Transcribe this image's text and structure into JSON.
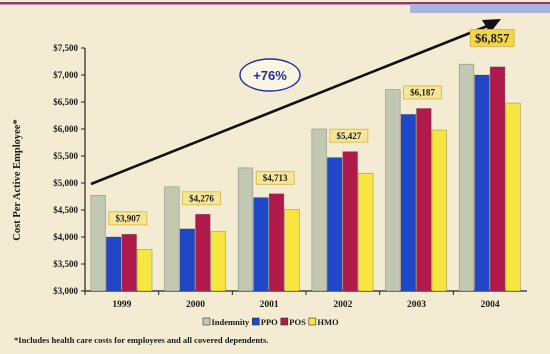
{
  "chart_data": {
    "type": "bar",
    "categories": [
      "1999",
      "2000",
      "2001",
      "2002",
      "2003",
      "2004"
    ],
    "series": [
      {
        "name": "Indemnity",
        "values": [
          4770,
          4930,
          5280,
          6000,
          6730,
          7200
        ],
        "color": "#c2c8b2"
      },
      {
        "name": "PPO",
        "values": [
          4000,
          4150,
          4730,
          5470,
          6270,
          7000
        ],
        "color": "#1f47c7"
      },
      {
        "name": "POS",
        "values": [
          4050,
          4420,
          4800,
          5580,
          6380,
          7150
        ],
        "color": "#b01a4a"
      },
      {
        "name": "HMO",
        "values": [
          3770,
          4100,
          4510,
          5180,
          5980,
          6480
        ],
        "color": "#f7e640"
      }
    ],
    "average_labels": [
      "$3,907",
      "$4,276",
      "$4,713",
      "$5,427",
      "$6,187",
      "$6,857"
    ],
    "ylabel": "Cost Per Active Employee*",
    "ylim": [
      3000,
      7500
    ],
    "yticks": [
      3000,
      3500,
      4000,
      4500,
      5000,
      5500,
      6000,
      6500,
      7000,
      7500
    ],
    "ytick_labels": [
      "$3,000",
      "$3,500",
      "$4,000",
      "$4,500",
      "$5,000",
      "$5,500",
      "$6,000",
      "$6,500",
      "$7,000",
      "$7,500"
    ],
    "growth_annotation": "+76%",
    "footnote": "*Includes health care costs for employees and all covered dependents.",
    "grid": false,
    "legend_position": "bottom-center",
    "colors": {
      "background": "#f3ecd2",
      "label_box": "#f5e79a",
      "label_border": "#d8b43a",
      "highlight_box": "#f2d64a",
      "growth_text": "#1e2f9e",
      "top_rule": "#8c3a6b",
      "top_band": "#aeb2de"
    }
  }
}
